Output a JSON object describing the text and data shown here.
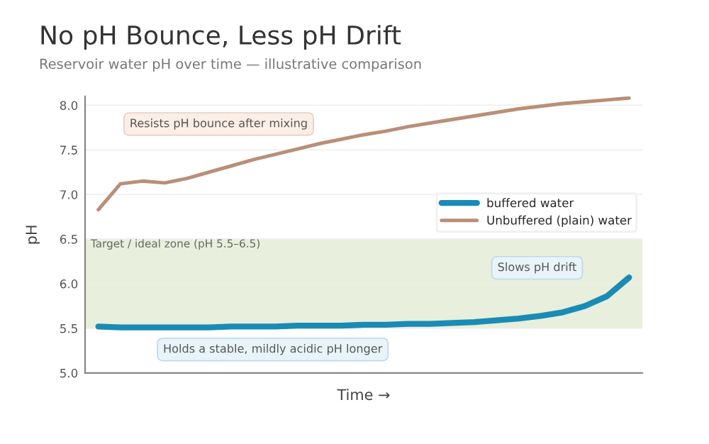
{
  "chart_data": {
    "type": "line",
    "title": "No pH Bounce, Less pH Drift",
    "subtitle": "Reservoir water pH over time — illustrative comparison",
    "xlabel": "Time →",
    "ylabel": "pH",
    "categories": [
      null,
      null,
      null,
      null,
      null,
      null,
      null,
      null,
      null,
      null,
      null,
      null,
      null,
      null,
      null,
      null,
      null,
      null,
      null,
      null,
      null,
      null,
      null,
      null,
      null
    ],
    "series": [
      {
        "name": "buffered water",
        "color": "#1a8bb5",
        "values": [
          5.52,
          5.51,
          5.51,
          5.51,
          5.51,
          5.51,
          5.52,
          5.52,
          5.52,
          5.53,
          5.53,
          5.53,
          5.54,
          5.54,
          5.55,
          5.55,
          5.56,
          5.57,
          5.59,
          5.61,
          5.64,
          5.68,
          5.75,
          5.86,
          6.07
        ]
      },
      {
        "name": "Unbuffered (plain) water",
        "color": "#b98f78",
        "values": [
          6.83,
          7.12,
          7.15,
          7.13,
          7.18,
          7.25,
          7.32,
          7.39,
          7.45,
          7.51,
          7.57,
          7.62,
          7.67,
          7.71,
          7.76,
          7.8,
          7.84,
          7.88,
          7.92,
          7.96,
          7.99,
          8.02,
          8.04,
          8.06,
          8.08
        ]
      }
    ],
    "ylim": [
      5.0,
      8.1
    ],
    "yticks": [
      {
        "value": 5.0,
        "label": "5.0"
      },
      {
        "value": 5.5,
        "label": "5.5"
      },
      {
        "value": 6.0,
        "label": "6.0"
      },
      {
        "value": 6.5,
        "label": "6.5"
      },
      {
        "value": 7.0,
        "label": "7.0"
      },
      {
        "value": 7.5,
        "label": "7.5"
      },
      {
        "value": 8.0,
        "label": "8.0"
      }
    ],
    "tick_labels": "y",
    "grid": "y",
    "legend": "right",
    "bands": [
      {
        "axis": "y",
        "from": 5.5,
        "to": 6.5,
        "label": "Target / ideal zone (pH 5.5–6.5)",
        "color": "#e8efdc"
      }
    ],
    "annotations": [
      "Resists pH bounce after mixing",
      "Slows pH drift",
      "Holds a stable, mildly acidic pH longer"
    ]
  }
}
